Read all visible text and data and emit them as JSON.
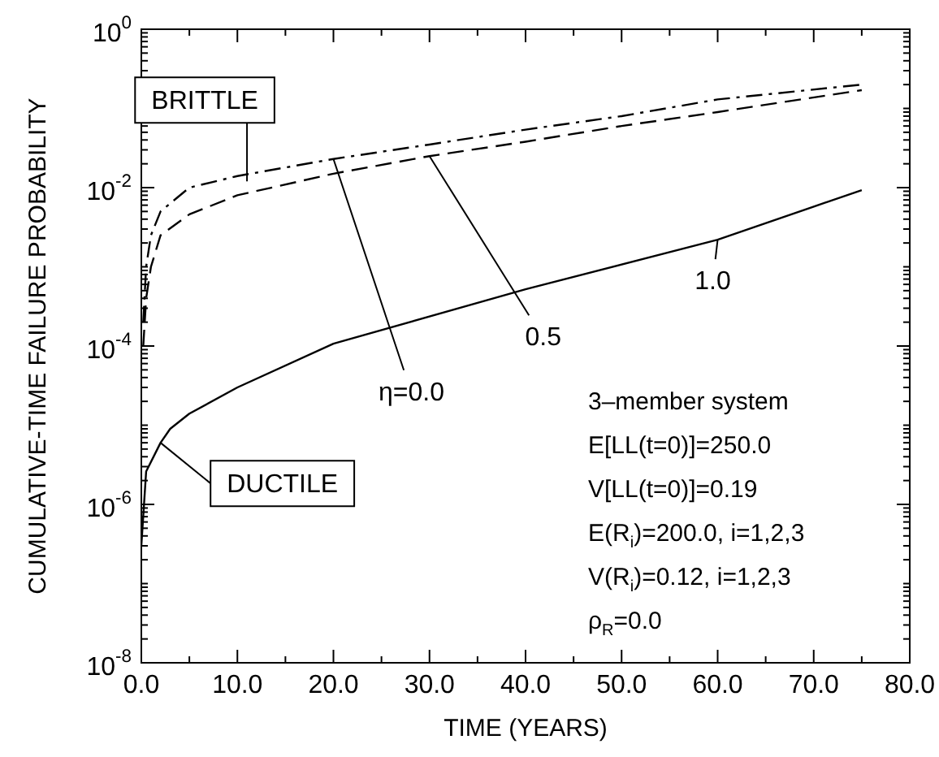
{
  "chart_data": {
    "type": "line",
    "xlabel": "TIME (YEARS)",
    "ylabel": "CUMULATIVE-TIME FAILURE PROBABILITY",
    "log": "y",
    "marker": "none",
    "xlim": [
      0,
      80
    ],
    "xticks": [
      {
        "value": 0,
        "label": "0.0"
      },
      {
        "value": 5,
        "label": null
      },
      {
        "value": 10,
        "label": "10.0"
      },
      {
        "value": 15,
        "label": null
      },
      {
        "value": 20,
        "label": "20.0"
      },
      {
        "value": 25,
        "label": null
      },
      {
        "value": 30,
        "label": "30.0"
      },
      {
        "value": 35,
        "label": null
      },
      {
        "value": 40,
        "label": "40.0"
      },
      {
        "value": 45,
        "label": null
      },
      {
        "value": 50,
        "label": "50.0"
      },
      {
        "value": 55,
        "label": null
      },
      {
        "value": 60,
        "label": "60.0"
      },
      {
        "value": 65,
        "label": null
      },
      {
        "value": 70,
        "label": "70.0"
      },
      {
        "value": 75,
        "label": null
      },
      {
        "value": 80,
        "label": "80.0"
      }
    ],
    "ylim": [
      1e-08,
      1
    ],
    "yticks": [
      {
        "value": 1e-08,
        "label": "10$^{-8}$"
      },
      {
        "value": 2e-08,
        "label": null
      },
      {
        "value": 3e-08,
        "label": null
      },
      {
        "value": 4e-08,
        "label": null
      },
      {
        "value": 5e-08,
        "label": null
      },
      {
        "value": 6e-08,
        "label": null
      },
      {
        "value": 7e-08,
        "label": null
      },
      {
        "value": 8e-08,
        "label": null
      },
      {
        "value": 9e-08,
        "label": null
      },
      {
        "value": 1e-07,
        "label": null
      },
      {
        "value": 2e-07,
        "label": null
      },
      {
        "value": 3e-07,
        "label": null
      },
      {
        "value": 4e-07,
        "label": null
      },
      {
        "value": 5e-07,
        "label": null
      },
      {
        "value": 6e-07,
        "label": null
      },
      {
        "value": 7e-07,
        "label": null
      },
      {
        "value": 8e-07,
        "label": null
      },
      {
        "value": 9e-07,
        "label": null
      },
      {
        "value": 1e-06,
        "label": "10$^{-6}$"
      },
      {
        "value": 2e-06,
        "label": null
      },
      {
        "value": 3e-06,
        "label": null
      },
      {
        "value": 4e-06,
        "label": null
      },
      {
        "value": 5e-06,
        "label": null
      },
      {
        "value": 6e-06,
        "label": null
      },
      {
        "value": 7e-06,
        "label": null
      },
      {
        "value": 8e-06,
        "label": null
      },
      {
        "value": 9e-06,
        "label": null
      },
      {
        "value": 1e-05,
        "label": null
      },
      {
        "value": 2e-05,
        "label": null
      },
      {
        "value": 3e-05,
        "label": null
      },
      {
        "value": 4e-05,
        "label": null
      },
      {
        "value": 5e-05,
        "label": null
      },
      {
        "value": 6e-05,
        "label": null
      },
      {
        "value": 7e-05,
        "label": null
      },
      {
        "value": 8e-05,
        "label": null
      },
      {
        "value": 9e-05,
        "label": null
      },
      {
        "value": 0.0001,
        "label": "10$^{-4}$"
      },
      {
        "value": 0.0002,
        "label": null
      },
      {
        "value": 0.0003,
        "label": null
      },
      {
        "value": 0.0004,
        "label": null
      },
      {
        "value": 0.0005,
        "label": null
      },
      {
        "value": 0.0006,
        "label": null
      },
      {
        "value": 0.0007,
        "label": null
      },
      {
        "value": 0.0008,
        "label": null
      },
      {
        "value": 0.0009,
        "label": null
      },
      {
        "value": 0.001,
        "label": null
      },
      {
        "value": 0.002,
        "label": null
      },
      {
        "value": 0.003,
        "label": null
      },
      {
        "value": 0.004,
        "label": null
      },
      {
        "value": 0.005,
        "label": null
      },
      {
        "value": 0.006,
        "label": null
      },
      {
        "value": 0.007,
        "label": null
      },
      {
        "value": 0.008,
        "label": null
      },
      {
        "value": 0.009,
        "label": null
      },
      {
        "value": 0.01,
        "label": "10$^{-2}$"
      },
      {
        "value": 0.02,
        "label": null
      },
      {
        "value": 0.03,
        "label": null
      },
      {
        "value": 0.04,
        "label": null
      },
      {
        "value": 0.05,
        "label": null
      },
      {
        "value": 0.06,
        "label": null
      },
      {
        "value": 0.07,
        "label": null
      },
      {
        "value": 0.08,
        "label": null
      },
      {
        "value": 0.09,
        "label": null
      },
      {
        "value": 0.1,
        "label": null
      },
      {
        "value": 0.2,
        "label": null
      },
      {
        "value": 0.3,
        "label": null
      },
      {
        "value": 0.4,
        "label": null
      },
      {
        "value": 0.5,
        "label": null
      },
      {
        "value": 0.6,
        "label": null
      },
      {
        "value": 0.7,
        "label": null
      },
      {
        "value": 0.8,
        "label": null
      },
      {
        "value": 0.9,
        "label": null
      },
      {
        "value": 1,
        "label": "10$^{0}$"
      }
    ],
    "x": [
      0.2,
      0.5,
      1,
      2,
      5,
      10,
      20,
      30,
      40,
      50,
      60,
      75
    ],
    "series": [
      {
        "color": "#000000",
        "line_style": "dashdot",
        "values": [
          0.0002,
          0.001,
          0.0025,
          0.005,
          0.01,
          0.014,
          0.023,
          0.035,
          0.054,
          0.08,
          0.13,
          0.2
        ]
      },
      {
        "color": "#000000",
        "line_style": "dashed",
        "values": [
          0.0001,
          0.0004,
          0.001,
          0.0025,
          0.0046,
          0.008,
          0.015,
          0.025,
          0.038,
          0.06,
          0.09,
          0.17
        ]
      },
      {
        "color": "#000000",
        "line_style": "solid",
        "x": [
          0,
          0.5,
          2,
          3,
          5,
          10,
          20,
          40,
          60,
          75
        ],
        "values": [
          3e-07,
          2.6e-06,
          6e-06,
          9e-06,
          1.4e-05,
          3e-05,
          0.000107,
          0.00052,
          0.0022,
          0.0093
        ]
      }
    ],
    "annotations": [
      {
        "text": "BRITTLE",
        "x": 11,
        "y": 0.012
      },
      {
        "text": "DUCTILE",
        "x": 2,
        "y": 6e-06
      },
      {
        "text": "η=0.0",
        "x": 20,
        "y": 0.023
      },
      {
        "text": "0.5",
        "x": 30,
        "y": 0.025
      },
      {
        "text": "1.0",
        "x": 60,
        "y": 0.0022
      },
      "3–member system",
      "E[LL(t=0)]=250.0",
      "V[LL(t=0)]=0.19",
      "E(R$_{i}$)=200.0, i=1,2,3",
      "V(R$_{i}$)=0.12, i=1,2,3",
      "ρ$_{R}$=0.0"
    ]
  }
}
